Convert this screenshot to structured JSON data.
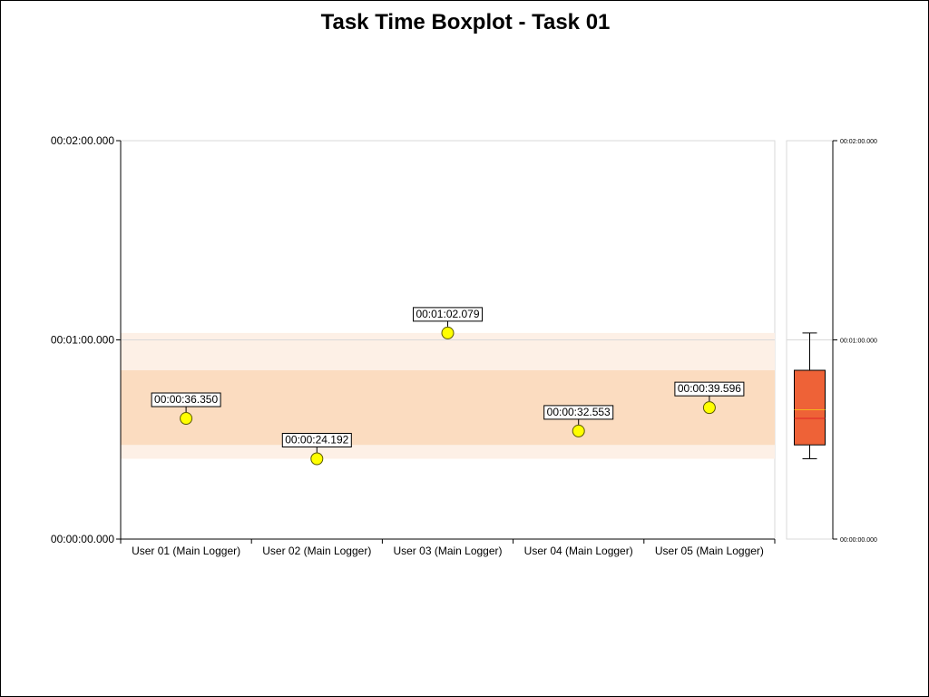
{
  "chart_data": {
    "type": "scatter",
    "title": "Task Time Boxplot - Task 01",
    "xlabel": "",
    "ylabel": "",
    "categories": [
      "User 01 (Main Logger)",
      "User 02 (Main Logger)",
      "User 03 (Main Logger)",
      "User 04 (Main Logger)",
      "User 05 (Main Logger)"
    ],
    "values_seconds": [
      36.35,
      24.192,
      62.079,
      32.553,
      39.596
    ],
    "value_labels": [
      "00:00:36.350",
      "00:00:24.192",
      "00:01:02.079",
      "00:00:32.553",
      "00:00:39.596"
    ],
    "ylim_seconds": [
      0,
      120
    ],
    "y_ticks": [
      {
        "value": 0,
        "label": "00:00:00.000"
      },
      {
        "value": 60,
        "label": "00:01:00.000"
      },
      {
        "value": 120,
        "label": "00:02:00.000"
      }
    ],
    "gridlines_seconds": [
      60
    ],
    "boxplot": {
      "min": 24.192,
      "q1": 28.37,
      "median": 36.35,
      "mean": 38.954,
      "q3": 50.84,
      "max": 62.079
    },
    "colors": {
      "point_fill": "#ffff00",
      "point_stroke": "#5a5a00",
      "band_outer": "#fdf0e6",
      "band_inner": "#fbdcc0",
      "box_fill": "#ee6237",
      "median_line": "#e0232a",
      "mean_line": "#f5b51e",
      "axis": "#000000",
      "grid": "#d9d9d9"
    }
  }
}
